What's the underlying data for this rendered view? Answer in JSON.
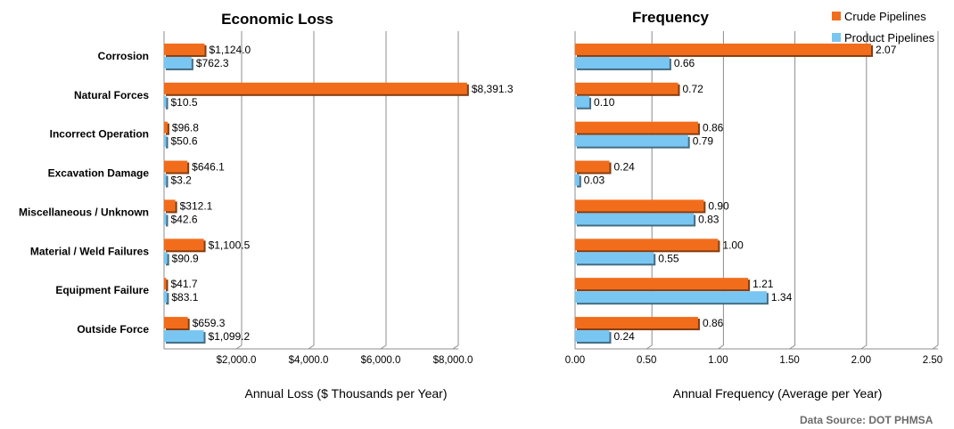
{
  "colors": {
    "crude": "#f26d1b",
    "product": "#79c6f2",
    "grid": "#8c8c8c"
  },
  "source": "Data Source: DOT PHMSA",
  "legend": [
    {
      "name": "Crude Pipelines",
      "color": "#f26d1b"
    },
    {
      "name": "Product Pipelines",
      "color": "#79c6f2"
    }
  ],
  "chart_data": [
    {
      "type": "bar",
      "orientation": "horizontal",
      "title": "Economic Loss",
      "xlabel": "Annual Loss ($ Thousands per Year)",
      "ylabel": "",
      "xlim": [
        0,
        8000
      ],
      "xticks": [
        2000,
        4000,
        6000,
        8000
      ],
      "xtick_labels": [
        "$2,000.0",
        "$4,000.0",
        "$6,000.0",
        "$8,000.0"
      ],
      "categories": [
        "Corrosion",
        "Natural Forces",
        "Incorrect Operation",
        "Excavation Damage",
        "Miscellaneous / Unknown",
        "Material / Weld Failures",
        "Equipment Failure",
        "Outside Force"
      ],
      "series": [
        {
          "name": "Crude Pipelines",
          "values": [
            1124.0,
            8391.3,
            96.8,
            646.1,
            312.1,
            1100.5,
            41.7,
            659.3
          ],
          "labels": [
            "$1,124.0",
            "$8,391.3",
            "$96.8",
            "$646.1",
            "$312.1",
            "$1,100.5",
            "$41.7",
            "$659.3"
          ]
        },
        {
          "name": "Product Pipelines",
          "values": [
            762.3,
            10.5,
            50.6,
            3.2,
            42.6,
            90.9,
            83.1,
            1099.2
          ],
          "labels": [
            "$762.3",
            "$10.5",
            "$50.6",
            "$3.2",
            "$42.6",
            "$90.9",
            "$83.1",
            "$1,099.2"
          ]
        }
      ],
      "grid": true
    },
    {
      "type": "bar",
      "orientation": "horizontal",
      "title": "Frequency",
      "xlabel": "Annual Frequency (Average per Year)",
      "ylabel": "",
      "xlim": [
        0,
        2.5
      ],
      "xticks": [
        0,
        0.5,
        1.0,
        1.5,
        2.0,
        2.5
      ],
      "xtick_labels": [
        "0.00",
        "0.50",
        "1.00",
        "1.50",
        "2.00",
        "2.50"
      ],
      "categories": [
        "Corrosion",
        "Natural Forces",
        "Incorrect Operation",
        "Excavation Damage",
        "Miscellaneous / Unknown",
        "Material / Weld Failures",
        "Equipment Failure",
        "Outside Force"
      ],
      "series": [
        {
          "name": "Crude Pipelines",
          "values": [
            2.07,
            0.72,
            0.86,
            0.24,
            0.9,
            1.0,
            1.21,
            0.86
          ],
          "labels": [
            "2.07",
            "0.72",
            "0.86",
            "0.24",
            "0.90",
            "1.00",
            "1.21",
            "0.86"
          ]
        },
        {
          "name": "Product Pipelines",
          "values": [
            0.66,
            0.1,
            0.79,
            0.03,
            0.83,
            0.55,
            1.34,
            0.24
          ],
          "labels": [
            "0.66",
            "0.10",
            "0.79",
            "0.03",
            "0.83",
            "0.55",
            "1.34",
            "0.24"
          ]
        }
      ],
      "grid": true
    }
  ]
}
